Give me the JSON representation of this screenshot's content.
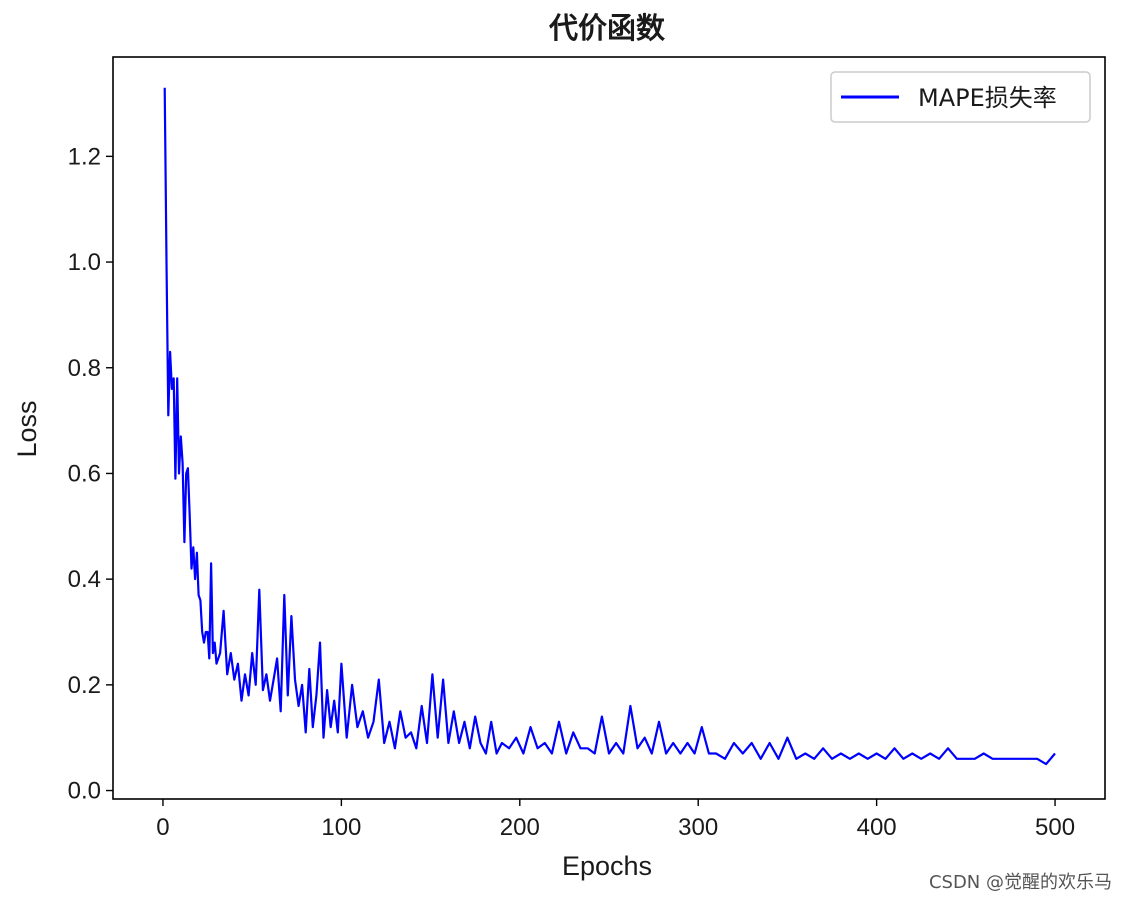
{
  "chart_data": {
    "type": "line",
    "title": "代价函数",
    "xlabel": "Epochs",
    "ylabel": "Loss",
    "xlim": [
      -28,
      528
    ],
    "ylim": [
      -0.016,
      1.388
    ],
    "x_ticks": [
      0,
      100,
      200,
      300,
      400,
      500
    ],
    "x_tick_labels": [
      "0",
      "100",
      "200",
      "300",
      "400",
      "500"
    ],
    "y_ticks": [
      0.0,
      0.2,
      0.4,
      0.6,
      0.8,
      1.0,
      1.2
    ],
    "y_tick_labels": [
      "0.0",
      "0.2",
      "0.4",
      "0.6",
      "0.8",
      "1.0",
      "1.2"
    ],
    "grid": false,
    "legend_position": "upper-right",
    "series": [
      {
        "name": "MAPE损失率",
        "color": "#0000ff",
        "x": [
          1,
          2,
          3,
          4,
          5,
          6,
          7,
          8,
          9,
          10,
          11,
          12,
          13,
          14,
          15,
          16,
          17,
          18,
          19,
          20,
          21,
          22,
          23,
          24,
          25,
          26,
          27,
          28,
          29,
          30,
          32,
          34,
          36,
          38,
          40,
          42,
          44,
          46,
          48,
          50,
          52,
          54,
          56,
          58,
          60,
          62,
          64,
          66,
          68,
          70,
          72,
          74,
          76,
          78,
          80,
          82,
          84,
          86,
          88,
          90,
          92,
          94,
          96,
          98,
          100,
          103,
          106,
          109,
          112,
          115,
          118,
          121,
          124,
          127,
          130,
          133,
          136,
          139,
          142,
          145,
          148,
          151,
          154,
          157,
          160,
          163,
          166,
          169,
          172,
          175,
          178,
          181,
          184,
          187,
          190,
          194,
          198,
          202,
          206,
          210,
          214,
          218,
          222,
          226,
          230,
          234,
          238,
          242,
          246,
          250,
          254,
          258,
          262,
          266,
          270,
          274,
          278,
          282,
          286,
          290,
          294,
          298,
          302,
          306,
          310,
          315,
          320,
          325,
          330,
          335,
          340,
          345,
          350,
          355,
          360,
          365,
          370,
          375,
          380,
          385,
          390,
          395,
          400,
          405,
          410,
          415,
          420,
          425,
          430,
          435,
          440,
          445,
          450,
          455,
          460,
          465,
          470,
          475,
          480,
          485,
          490,
          495,
          500
        ],
        "y": [
          1.33,
          1.0,
          0.71,
          0.83,
          0.76,
          0.78,
          0.59,
          0.78,
          0.6,
          0.67,
          0.62,
          0.47,
          0.6,
          0.61,
          0.52,
          0.42,
          0.46,
          0.4,
          0.45,
          0.37,
          0.36,
          0.3,
          0.28,
          0.3,
          0.3,
          0.25,
          0.43,
          0.26,
          0.28,
          0.24,
          0.26,
          0.34,
          0.22,
          0.26,
          0.21,
          0.24,
          0.17,
          0.22,
          0.18,
          0.26,
          0.2,
          0.38,
          0.19,
          0.22,
          0.17,
          0.21,
          0.25,
          0.15,
          0.37,
          0.18,
          0.33,
          0.21,
          0.16,
          0.2,
          0.11,
          0.23,
          0.12,
          0.18,
          0.28,
          0.1,
          0.19,
          0.12,
          0.17,
          0.11,
          0.24,
          0.1,
          0.2,
          0.12,
          0.15,
          0.1,
          0.13,
          0.21,
          0.09,
          0.13,
          0.08,
          0.15,
          0.1,
          0.11,
          0.08,
          0.16,
          0.09,
          0.22,
          0.1,
          0.21,
          0.09,
          0.15,
          0.09,
          0.13,
          0.08,
          0.14,
          0.09,
          0.07,
          0.13,
          0.07,
          0.09,
          0.08,
          0.1,
          0.07,
          0.12,
          0.08,
          0.09,
          0.07,
          0.13,
          0.07,
          0.11,
          0.08,
          0.08,
          0.07,
          0.14,
          0.07,
          0.09,
          0.07,
          0.16,
          0.08,
          0.1,
          0.07,
          0.13,
          0.07,
          0.09,
          0.07,
          0.09,
          0.07,
          0.12,
          0.07,
          0.07,
          0.06,
          0.09,
          0.07,
          0.09,
          0.06,
          0.09,
          0.06,
          0.1,
          0.06,
          0.07,
          0.06,
          0.08,
          0.06,
          0.07,
          0.06,
          0.07,
          0.06,
          0.07,
          0.06,
          0.08,
          0.06,
          0.07,
          0.06,
          0.07,
          0.06,
          0.08,
          0.06,
          0.06,
          0.06,
          0.07,
          0.06,
          0.06,
          0.06,
          0.06,
          0.06,
          0.06,
          0.05,
          0.07
        ]
      }
    ]
  },
  "watermark": "CSDN @觉醒的欢乐马"
}
